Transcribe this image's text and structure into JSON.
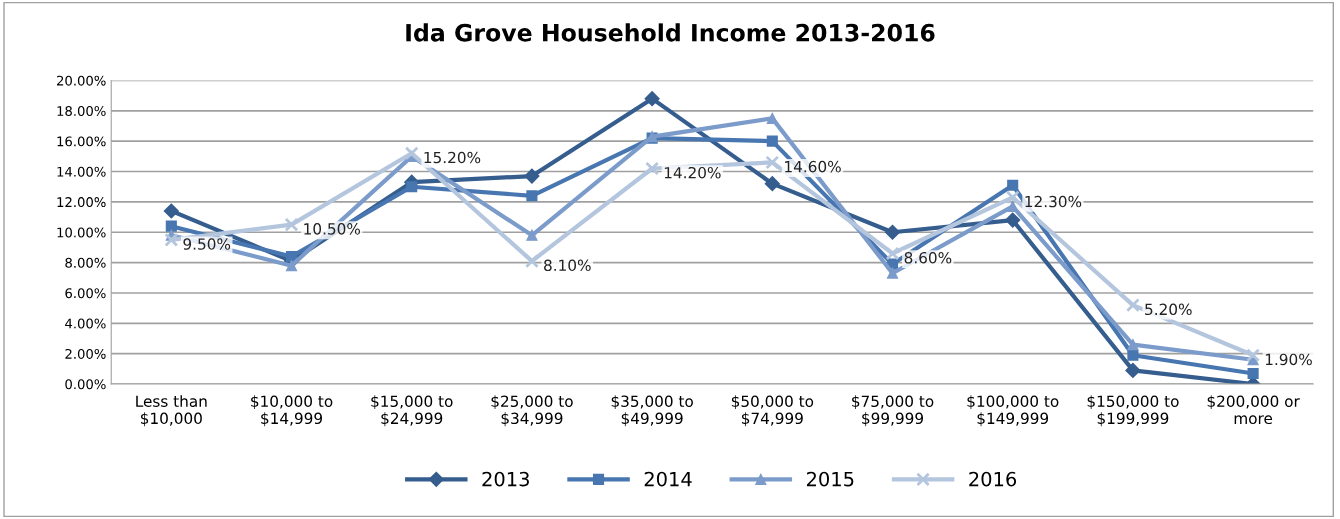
{
  "chart_data": {
    "type": "line",
    "title": "Ida Grove Household Income 2013-2016",
    "categories": [
      "Less than\n$10,000",
      "$10,000 to\n$14,999",
      "$15,000 to\n$24,999",
      "$25,000 to\n$34,999",
      "$35,000 to\n$49,999",
      "$50,000 to\n$74,999",
      "$75,000 to\n$99,999",
      "$100,000 to\n$149,999",
      "$150,000 to\n$199,999",
      "$200,000 or\nmore"
    ],
    "series": [
      {
        "name": "2013",
        "color": "#355d8e",
        "marker": "diamond",
        "values": [
          11.4,
          8.1,
          13.3,
          13.7,
          18.8,
          13.2,
          10.0,
          10.8,
          0.9,
          0.0
        ]
      },
      {
        "name": "2014",
        "color": "#4776b0",
        "marker": "square",
        "values": [
          10.4,
          8.4,
          13.0,
          12.4,
          16.2,
          16.0,
          7.9,
          13.1,
          1.9,
          0.7
        ]
      },
      {
        "name": "2015",
        "color": "#7b9bcb",
        "marker": "triangle",
        "values": [
          9.8,
          7.8,
          15.0,
          9.8,
          16.3,
          17.5,
          7.3,
          11.7,
          2.6,
          1.6
        ]
      },
      {
        "name": "2016",
        "color": "#b4c5de",
        "marker": "cross",
        "values": [
          9.5,
          10.5,
          15.2,
          8.1,
          14.2,
          14.6,
          8.6,
          12.3,
          5.2,
          1.9
        ],
        "value_labels": [
          "9.50%",
          "10.50%",
          "15.20%",
          "8.10%",
          "14.20%",
          "14.60%",
          "8.60%",
          "12.30%",
          "5.20%",
          "1.90%"
        ]
      }
    ],
    "ylim": [
      0,
      20
    ],
    "yticks": [
      {
        "value": 0,
        "label": "0.00%"
      },
      {
        "value": 2,
        "label": "2.00%"
      },
      {
        "value": 4,
        "label": "4.00%"
      },
      {
        "value": 6,
        "label": "6.00%"
      },
      {
        "value": 8,
        "label": "8.00%"
      },
      {
        "value": 10,
        "label": "10.00%"
      },
      {
        "value": 12,
        "label": "12.00%"
      },
      {
        "value": 14,
        "label": "14.00%"
      },
      {
        "value": 16,
        "label": "16.00%"
      },
      {
        "value": 18,
        "label": "18.00%"
      },
      {
        "value": 20,
        "label": "20.00%"
      }
    ],
    "grid": "y",
    "legend": "bottom",
    "line_style": "solid"
  }
}
